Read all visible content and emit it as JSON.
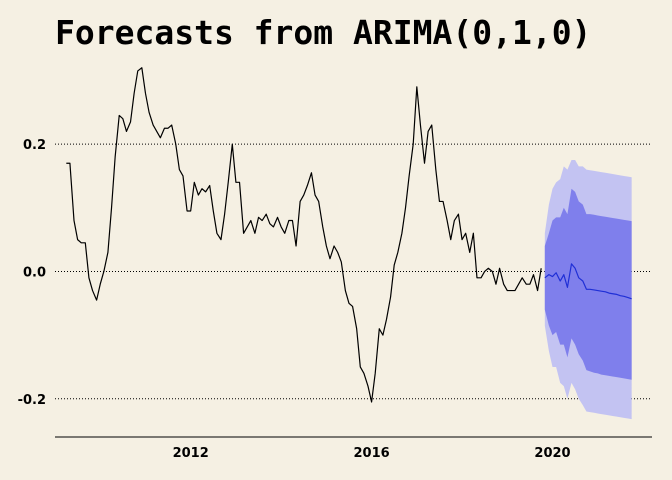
{
  "chart_data": {
    "type": "line",
    "title": "Forecasts from ARIMA(0,1,0)",
    "xlabel": "",
    "ylabel": "",
    "xlim": [
      2009,
      2022.2
    ],
    "ylim": [
      -0.26,
      0.34
    ],
    "x_ticks": [
      {
        "value": 2012,
        "label": "2012"
      },
      {
        "value": 2016,
        "label": "2016"
      },
      {
        "value": 2020,
        "label": "2020"
      }
    ],
    "y_ticks": [
      {
        "value": 0.2,
        "label": "0.2"
      },
      {
        "value": 0.0,
        "label": "0.0"
      },
      {
        "value": -0.2,
        "label": "-0.2"
      }
    ],
    "grid": "horizontal dotted",
    "colors": {
      "background": "#f5f0e3",
      "history_line": "#000000",
      "forecast_line": "#1f2fd6",
      "band_95": "#c3c3f2",
      "band_80": "#7f7fec"
    },
    "series": [
      {
        "role": "history",
        "x": [
          2009.25,
          2009.33,
          2009.42,
          2009.5,
          2009.58,
          2009.67,
          2009.75,
          2009.83,
          2009.92,
          2010.0,
          2010.08,
          2010.17,
          2010.25,
          2010.33,
          2010.42,
          2010.5,
          2010.58,
          2010.67,
          2010.75,
          2010.83,
          2010.92,
          2011.0,
          2011.08,
          2011.17,
          2011.25,
          2011.33,
          2011.42,
          2011.5,
          2011.58,
          2011.67,
          2011.75,
          2011.83,
          2011.92,
          2012.0,
          2012.08,
          2012.17,
          2012.25,
          2012.33,
          2012.42,
          2012.5,
          2012.58,
          2012.67,
          2012.75,
          2012.83,
          2012.92,
          2013.0,
          2013.08,
          2013.17,
          2013.25,
          2013.33,
          2013.42,
          2013.5,
          2013.58,
          2013.67,
          2013.75,
          2013.83,
          2013.92,
          2014.0,
          2014.08,
          2014.17,
          2014.25,
          2014.33,
          2014.42,
          2014.5,
          2014.58,
          2014.67,
          2014.75,
          2014.83,
          2014.92,
          2015.0,
          2015.08,
          2015.17,
          2015.25,
          2015.33,
          2015.42,
          2015.5,
          2015.58,
          2015.67,
          2015.75,
          2015.83,
          2015.92,
          2016.0,
          2016.08,
          2016.17,
          2016.25,
          2016.33,
          2016.42,
          2016.5,
          2016.58,
          2016.67,
          2016.75,
          2016.83,
          2016.92,
          2017.0,
          2017.08,
          2017.17,
          2017.25,
          2017.33,
          2017.42,
          2017.5,
          2017.58,
          2017.67,
          2017.75,
          2017.83,
          2017.92,
          2018.0,
          2018.08,
          2018.17,
          2018.25,
          2018.33,
          2018.42,
          2018.5,
          2018.58,
          2018.67,
          2018.75,
          2018.83,
          2018.92,
          2019.0,
          2019.08,
          2019.17,
          2019.25,
          2019.33,
          2019.42,
          2019.5,
          2019.58,
          2019.67,
          2019.75
        ],
        "values": [
          0.17,
          0.17,
          0.08,
          0.05,
          0.045,
          0.045,
          -0.01,
          -0.03,
          -0.045,
          -0.02,
          0.0,
          0.03,
          0.1,
          0.18,
          0.245,
          0.24,
          0.22,
          0.235,
          0.28,
          0.315,
          0.32,
          0.28,
          0.25,
          0.23,
          0.22,
          0.21,
          0.225,
          0.225,
          0.23,
          0.2,
          0.16,
          0.15,
          0.095,
          0.095,
          0.14,
          0.12,
          0.13,
          0.125,
          0.135,
          0.095,
          0.06,
          0.05,
          0.09,
          0.14,
          0.2,
          0.14,
          0.14,
          0.06,
          0.07,
          0.08,
          0.06,
          0.085,
          0.08,
          0.09,
          0.075,
          0.07,
          0.085,
          0.07,
          0.06,
          0.08,
          0.08,
          0.04,
          0.11,
          0.12,
          0.135,
          0.155,
          0.12,
          0.11,
          0.07,
          0.04,
          0.02,
          0.04,
          0.03,
          0.015,
          -0.03,
          -0.05,
          -0.055,
          -0.09,
          -0.15,
          -0.16,
          -0.18,
          -0.205,
          -0.16,
          -0.09,
          -0.1,
          -0.075,
          -0.04,
          0.01,
          0.03,
          0.06,
          0.1,
          0.15,
          0.2,
          0.29,
          0.23,
          0.17,
          0.22,
          0.23,
          0.16,
          0.11,
          0.11,
          0.08,
          0.05,
          0.08,
          0.09,
          0.05,
          0.06,
          0.03,
          0.06,
          -0.01,
          -0.01,
          0.0,
          0.005,
          0.0,
          -0.02,
          0.005,
          -0.02,
          -0.03,
          -0.03,
          -0.03,
          -0.02,
          -0.01,
          -0.02,
          -0.02,
          -0.005,
          -0.03,
          0.005
        ]
      },
      {
        "role": "forecast_mean",
        "x": [
          2019.83,
          2019.92,
          2020.0,
          2020.08,
          2020.17,
          2020.25,
          2020.33,
          2020.42,
          2020.5,
          2020.58,
          2020.67,
          2020.75,
          2020.83,
          2020.92,
          2021.0,
          2021.08,
          2021.17,
          2021.25,
          2021.33,
          2021.42,
          2021.5,
          2021.58,
          2021.67,
          2021.75
        ],
        "values": [
          -0.01,
          -0.005,
          -0.008,
          -0.002,
          -0.015,
          -0.005,
          -0.025,
          0.012,
          0.005,
          -0.01,
          -0.015,
          -0.028,
          -0.028,
          -0.029,
          -0.03,
          -0.031,
          -0.032,
          -0.034,
          -0.035,
          -0.036,
          -0.038,
          -0.039,
          -0.041,
          -0.043
        ]
      }
    ],
    "intervals": [
      {
        "level": 80,
        "lower": [
          -0.06,
          -0.085,
          -0.1,
          -0.095,
          -0.115,
          -0.115,
          -0.135,
          -0.105,
          -0.115,
          -0.13,
          -0.14,
          -0.155,
          -0.157,
          -0.159,
          -0.16,
          -0.162,
          -0.163,
          -0.164,
          -0.165,
          -0.166,
          -0.167,
          -0.168,
          -0.169,
          -0.17
        ],
        "upper": [
          0.04,
          0.06,
          0.08,
          0.085,
          0.085,
          0.1,
          0.09,
          0.13,
          0.125,
          0.11,
          0.105,
          0.09,
          0.09,
          0.089,
          0.088,
          0.087,
          0.086,
          0.085,
          0.084,
          0.083,
          0.082,
          0.081,
          0.08,
          0.079
        ]
      },
      {
        "level": 95,
        "lower": [
          -0.085,
          -0.125,
          -0.15,
          -0.15,
          -0.175,
          -0.18,
          -0.2,
          -0.175,
          -0.185,
          -0.2,
          -0.21,
          -0.22,
          -0.221,
          -0.222,
          -0.223,
          -0.224,
          -0.225,
          -0.226,
          -0.227,
          -0.228,
          -0.229,
          -0.23,
          -0.231,
          -0.232
        ],
        "upper": [
          0.06,
          0.105,
          0.13,
          0.14,
          0.145,
          0.165,
          0.16,
          0.175,
          0.175,
          0.165,
          0.165,
          0.16,
          0.159,
          0.158,
          0.157,
          0.156,
          0.155,
          0.154,
          0.153,
          0.152,
          0.151,
          0.15,
          0.149,
          0.148
        ]
      }
    ]
  }
}
